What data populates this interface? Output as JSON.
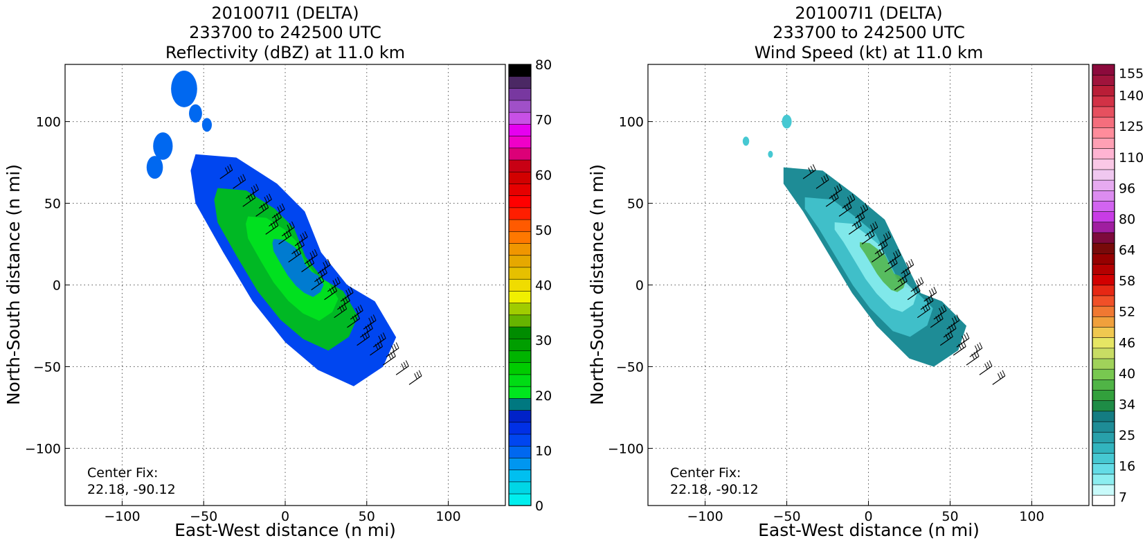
{
  "chart_data": [
    {
      "type": "heatmap",
      "title": "201007I1 (DELTA)\n233700 to 242500 UTC\nReflectivity (dBZ) at 11.0 km",
      "title_lines": [
        "201007I1 (DELTA)",
        "233700 to 242500 UTC",
        "Reflectivity (dBZ) at 11.0 km"
      ],
      "xlabel": "East-West distance (n mi)",
      "ylabel": "North-South distance (n mi)",
      "xlim": [
        -135,
        135
      ],
      "ylim": [
        -135,
        135
      ],
      "xticks": [
        -100,
        -50,
        0,
        50,
        100
      ],
      "yticks": [
        -100,
        -50,
        0,
        50,
        100
      ],
      "xtick_labels": [
        "−100",
        "−50",
        "0",
        "50",
        "100"
      ],
      "ytick_labels": [
        "−100",
        "−50",
        "0",
        "50",
        "100"
      ],
      "grid": true,
      "annotation": [
        "Center Fix:",
        "22.18, -90.12"
      ],
      "colorbar": {
        "min": 0,
        "max": 80,
        "tick_values": [
          0,
          10,
          20,
          30,
          40,
          50,
          60,
          70,
          80
        ],
        "tick_labels": [
          "0",
          "10",
          "20",
          "30",
          "40",
          "50",
          "60",
          "70",
          "80"
        ],
        "colors": [
          "#00eeee",
          "#00d6e6",
          "#00bff0",
          "#0096f0",
          "#0068f0",
          "#0046f0",
          "#0030e6",
          "#0022c8",
          "#007880",
          "#00e61e",
          "#00dc14",
          "#00cc00",
          "#00b400",
          "#009e00",
          "#008c00",
          "#66b400",
          "#a0cc00",
          "#f0f000",
          "#f0dc00",
          "#e6c000",
          "#e6a800",
          "#f09600",
          "#ff7800",
          "#ff5a00",
          "#ff1e00",
          "#ff0000",
          "#e60000",
          "#d20000",
          "#c80014",
          "#dc0078",
          "#f000c8",
          "#e600f0",
          "#c850e6",
          "#a050c8",
          "#7838a0",
          "#4b2864",
          "#000000"
        ]
      },
      "echo_region": {
        "note": "radar echo swath oriented NW-SE",
        "outline_x": [
          -55,
          -30,
          -5,
          12,
          22,
          38,
          55,
          68,
          60,
          42,
          20,
          0,
          -20,
          -38,
          -55,
          -58
        ],
        "outline_y": [
          80,
          78,
          62,
          45,
          20,
          0,
          -10,
          -32,
          -50,
          -62,
          -52,
          -35,
          -10,
          20,
          50,
          70
        ],
        "fill_levels_dbz": [
          12,
          20,
          22,
          14,
          10
        ]
      },
      "barbs_region": "along swath"
    },
    {
      "type": "heatmap",
      "title": "201007I1 (DELTA)\n233700 to 242500 UTC\nWind Speed (kt) at 11.0 km",
      "title_lines": [
        "201007I1 (DELTA)",
        "233700 to 242500 UTC",
        "Wind Speed (kt) at 11.0 km"
      ],
      "xlabel": "East-West distance (n mi)",
      "ylabel": "North-South distance (n mi)",
      "xlim": [
        -135,
        135
      ],
      "ylim": [
        -135,
        135
      ],
      "xticks": [
        -100,
        -50,
        0,
        50,
        100
      ],
      "yticks": [
        -100,
        -50,
        0,
        50,
        100
      ],
      "xtick_labels": [
        "−100",
        "−50",
        "0",
        "50",
        "100"
      ],
      "ytick_labels": [
        "−100",
        "−50",
        "0",
        "50",
        "100"
      ],
      "grid": true,
      "annotation": [
        "Center Fix:",
        "22.18, -90.12"
      ],
      "colorbar": {
        "tick_labels": [
          "7",
          "16",
          "25",
          "34",
          "40",
          "46",
          "52",
          "58",
          "64",
          "80",
          "96",
          "110",
          "125",
          "140",
          "155"
        ],
        "tick_fractions": [
          0.02,
          0.09,
          0.16,
          0.23,
          0.3,
          0.37,
          0.44,
          0.51,
          0.58,
          0.65,
          0.72,
          0.79,
          0.86,
          0.93,
          0.98
        ],
        "colors": [
          "#ffffff",
          "#c8fafa",
          "#8ceef0",
          "#64dce6",
          "#46c8d2",
          "#32b4be",
          "#28a0aa",
          "#1e8c96",
          "#147c82",
          "#1e8c46",
          "#32a03c",
          "#50b446",
          "#78c850",
          "#a0d25a",
          "#c8dc64",
          "#e6e664",
          "#f0c850",
          "#f0a03c",
          "#f07832",
          "#f05028",
          "#e62814",
          "#d20000",
          "#b40000",
          "#960000",
          "#780a0a",
          "#7d0a3c",
          "#a01ea0",
          "#c83ce6",
          "#d264f0",
          "#dc8cf0",
          "#e6aaf0",
          "#f0c8f0",
          "#fac8e6",
          "#ffb4d2",
          "#ffa0b4",
          "#ff8c9b",
          "#f56e7d",
          "#e6505f",
          "#d23246",
          "#b91e37",
          "#a0143c",
          "#8c0a3c"
        ]
      },
      "echo_region": {
        "note": "wind swath oriented NW-SE",
        "outline_x": [
          -52,
          -28,
          -8,
          10,
          22,
          32,
          45,
          60,
          55,
          40,
          25,
          5,
          -10,
          -25,
          -40,
          -52
        ],
        "outline_y": [
          72,
          70,
          55,
          40,
          15,
          -5,
          -10,
          -25,
          -40,
          -50,
          -45,
          -25,
          -5,
          20,
          45,
          62
        ],
        "fill_speeds_kt": [
          25,
          22,
          16,
          34,
          40
        ]
      },
      "barbs_region": "along swath"
    }
  ]
}
